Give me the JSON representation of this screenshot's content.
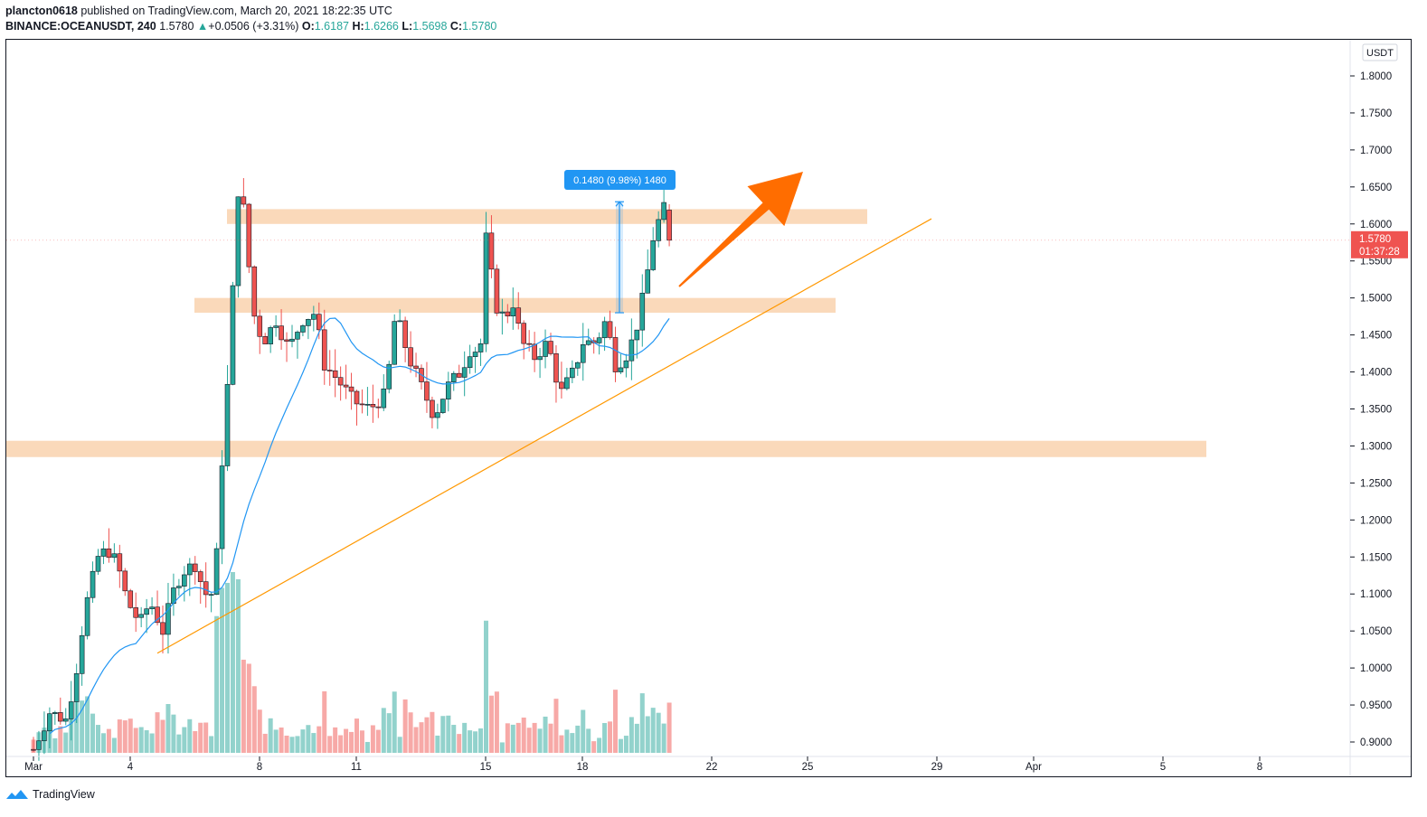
{
  "header": {
    "publisher": "plancton0618",
    "published_text": "published on TradingView.com, March 20, 2021 18:22:35 UTC",
    "symbol": "BINANCE:OCEANUSDT, 240",
    "last": "1.5780",
    "change": "+0.0506 (+3.31%)",
    "o_label": "O:",
    "o": "1.6187",
    "h_label": "H:",
    "h": "1.6266",
    "l_label": "L:",
    "l": "1.5698",
    "c_label": "C:",
    "c": "1.5780"
  },
  "footer": {
    "brand": "TradingView"
  },
  "colors": {
    "up": "#26a69a",
    "down": "#ef5350",
    "zone": "#f9d2ae",
    "ma": "#2196f3",
    "trend": "#ff9800",
    "arrow": "#ff6d00",
    "measure": "#2196f3"
  },
  "chart_data": {
    "type": "candlestick",
    "currency": "USDT",
    "ylim": [
      0.88,
      1.83
    ],
    "y_ticks": [
      "1.8000",
      "1.7500",
      "1.7000",
      "1.6500",
      "1.6000",
      "1.5500",
      "1.5000",
      "1.4500",
      "1.4000",
      "1.3500",
      "1.3000",
      "1.2500",
      "1.2000",
      "1.1500",
      "1.1000",
      "1.0500",
      "1.0000",
      "0.9500",
      "0.9000"
    ],
    "x_ticks": [
      "Mar",
      "4",
      "8",
      "11",
      "15",
      "18",
      "22",
      "25",
      "29",
      "Apr",
      "5",
      "8"
    ],
    "price_label": {
      "value": "1.5780",
      "countdown": "01:37:28"
    },
    "measure_label": "0.1480 (9.98%) 1480",
    "zones": [
      [
        1.6,
        1.62
      ],
      [
        1.48,
        1.5
      ],
      [
        1.285,
        1.307
      ]
    ],
    "trendline": {
      "from": [
        "Mar 5",
        1.02
      ],
      "to": [
        "Mar 26",
        1.607
      ]
    },
    "forecast_arrow": {
      "from": [
        "Mar 20",
        1.5
      ],
      "to": [
        "Mar 27",
        1.66
      ]
    },
    "measure": {
      "from": 1.48,
      "to": 1.63
    }
  }
}
